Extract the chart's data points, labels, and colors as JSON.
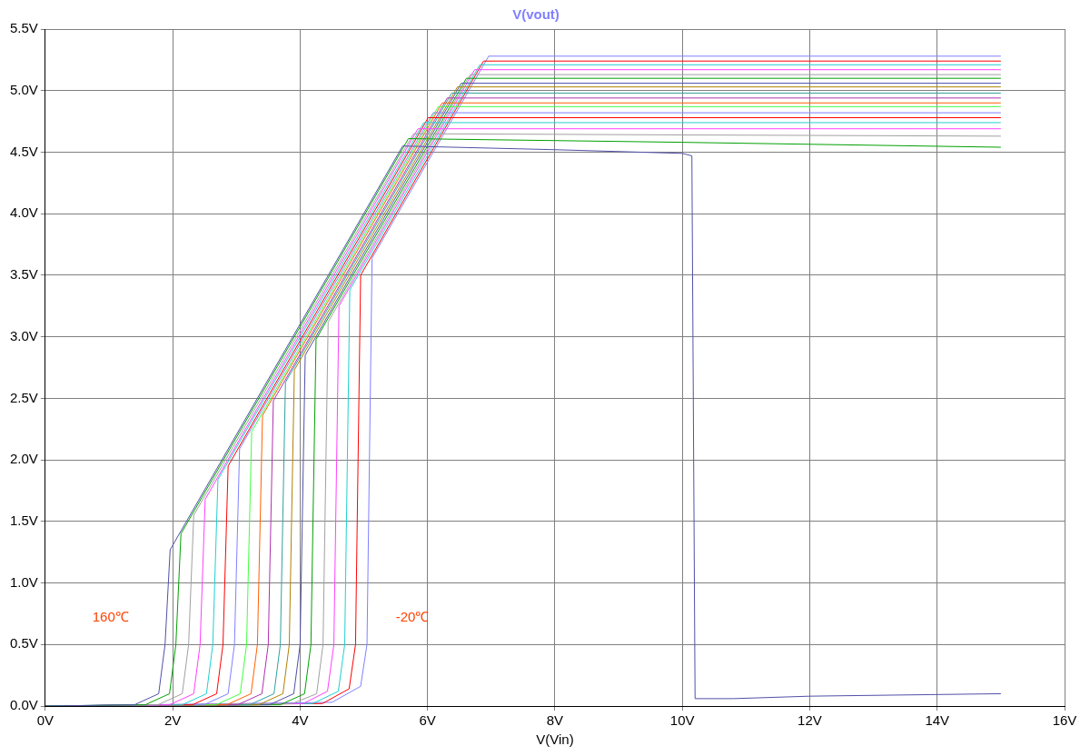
{
  "chart_data": {
    "type": "line",
    "title": "V(vout)",
    "xlabel": "V(Vin)",
    "xlim": [
      0,
      16
    ],
    "xticks": [
      {
        "value": 0,
        "label": "0V"
      },
      {
        "value": 2,
        "label": "2V"
      },
      {
        "value": 4,
        "label": "4V"
      },
      {
        "value": 6,
        "label": "6V"
      },
      {
        "value": 8,
        "label": "8V"
      },
      {
        "value": 10,
        "label": "10V"
      },
      {
        "value": 12,
        "label": "12V"
      },
      {
        "value": 14,
        "label": "14V"
      },
      {
        "value": 16,
        "label": "16V"
      }
    ],
    "ylim": [
      0,
      5.5
    ],
    "yticks": [
      {
        "value": 0,
        "label": "0.0V"
      },
      {
        "value": 0.5,
        "label": "0.5V"
      },
      {
        "value": 1,
        "label": "1.0V"
      },
      {
        "value": 1.5,
        "label": "1.5V"
      },
      {
        "value": 2,
        "label": "2.0V"
      },
      {
        "value": 2.5,
        "label": "2.5V"
      },
      {
        "value": 3,
        "label": "3.0V"
      },
      {
        "value": 3.5,
        "label": "3.5V"
      },
      {
        "value": 4,
        "label": "4.0V"
      },
      {
        "value": 4.5,
        "label": "4.5V"
      },
      {
        "value": 5,
        "label": "5.0V"
      },
      {
        "value": 5.5,
        "label": "5.5V"
      }
    ],
    "grid": true,
    "legend": false,
    "marker": "none",
    "line_style": "solid",
    "annotations": [
      "160℃",
      "-20℃"
    ],
    "series": [
      {
        "color": "#5050a8",
        "x": [
          0,
          1.4,
          1.78,
          1.88,
          1.96,
          5.61,
          8,
          10,
          10.15,
          10.2,
          10.8,
          12,
          15
        ],
        "values": [
          0,
          0.01,
          0.1,
          0.5,
          1.27,
          4.55,
          4.52,
          4.49,
          4.47,
          0.06,
          0.06,
          0.08,
          0.1
        ]
      },
      {
        "color": "#00a000",
        "x": [
          0,
          1.57,
          1.95,
          2.05,
          2.13,
          5.7,
          10,
          15
        ],
        "values": [
          0,
          0.01,
          0.1,
          0.5,
          1.4,
          4.61,
          4.58,
          4.54
        ]
      },
      {
        "color": "#a0a0a0",
        "x": [
          0,
          1.77,
          2.15,
          2.25,
          2.33,
          5.78,
          10,
          15
        ],
        "values": [
          0,
          0.01,
          0.1,
          0.5,
          1.55,
          4.65,
          4.64,
          4.63
        ]
      },
      {
        "color": "#ff40ff",
        "x": [
          0,
          1.95,
          2.33,
          2.43,
          2.51,
          5.85,
          15
        ],
        "values": [
          0,
          0.01,
          0.1,
          0.5,
          1.68,
          4.69,
          4.69
        ]
      },
      {
        "color": "#20d0d0",
        "x": [
          0,
          2.15,
          2.53,
          2.63,
          2.71,
          5.94,
          15
        ],
        "values": [
          0,
          0.01,
          0.1,
          0.5,
          1.84,
          4.74,
          4.74
        ]
      },
      {
        "color": "#ff0000",
        "x": [
          0,
          2.31,
          2.69,
          2.79,
          2.87,
          6.01,
          15
        ],
        "values": [
          0,
          0.01,
          0.1,
          0.5,
          1.95,
          4.78,
          4.78
        ]
      },
      {
        "color": "#8080ff",
        "x": [
          0,
          2.49,
          2.87,
          2.97,
          3.05,
          6.09,
          15
        ],
        "values": [
          0,
          0.01,
          0.1,
          0.5,
          2.09,
          4.82,
          4.82
        ]
      },
      {
        "color": "#40ff40",
        "x": [
          0,
          2.68,
          3.06,
          3.16,
          3.24,
          6.17,
          15
        ],
        "values": [
          0,
          0.01,
          0.1,
          0.5,
          2.23,
          4.87,
          4.87
        ]
      },
      {
        "color": "#ff6000",
        "x": [
          0,
          2.85,
          3.23,
          3.33,
          3.41,
          6.23,
          15
        ],
        "values": [
          0,
          0.01,
          0.1,
          0.5,
          2.36,
          4.9,
          4.9
        ]
      },
      {
        "color": "#b030b0",
        "x": [
          0,
          3.02,
          3.4,
          3.5,
          3.58,
          6.31,
          15
        ],
        "values": [
          0,
          0.01,
          0.1,
          0.5,
          2.48,
          4.94,
          4.94
        ]
      },
      {
        "color": "#30a0a0",
        "x": [
          0,
          3.21,
          3.59,
          3.69,
          3.77,
          6.38,
          15
        ],
        "values": [
          0,
          0.01,
          0.1,
          0.5,
          2.63,
          4.98,
          4.98
        ]
      },
      {
        "color": "#b08000",
        "x": [
          0,
          3.35,
          3.73,
          3.83,
          3.91,
          6.47,
          15
        ],
        "values": [
          0,
          0.01,
          0.1,
          0.5,
          2.73,
          5.03,
          5.03
        ]
      },
      {
        "color": "#5050a8",
        "x": [
          0,
          3.52,
          3.9,
          4.0,
          4.08,
          6.53,
          15
        ],
        "values": [
          0,
          0.01,
          0.1,
          0.5,
          2.85,
          5.06,
          5.06
        ]
      },
      {
        "color": "#00a000",
        "x": [
          0,
          3.69,
          4.07,
          4.17,
          4.25,
          6.61,
          15
        ],
        "values": [
          0,
          0.01,
          0.1,
          0.5,
          2.98,
          5.1,
          5.1
        ]
      },
      {
        "color": "#a0a0a0",
        "x": [
          0,
          3.88,
          4.26,
          4.36,
          4.44,
          6.67,
          15
        ],
        "values": [
          0,
          0.02,
          0.1,
          0.5,
          3.12,
          5.13,
          5.13
        ]
      },
      {
        "color": "#ff40ff",
        "x": [
          0,
          4.05,
          4.43,
          4.53,
          4.61,
          6.74,
          15
        ],
        "values": [
          0,
          0.02,
          0.12,
          0.5,
          3.25,
          5.17,
          5.17
        ]
      },
      {
        "color": "#20d0d0",
        "x": [
          0,
          4.2,
          4.6,
          4.7,
          4.78,
          6.82,
          15
        ],
        "values": [
          0,
          0.02,
          0.12,
          0.5,
          3.38,
          5.21,
          5.21
        ]
      },
      {
        "color": "#ff0000",
        "x": [
          0,
          4.35,
          4.77,
          4.87,
          4.95,
          6.88,
          15
        ],
        "values": [
          0,
          0.02,
          0.14,
          0.5,
          3.5,
          5.24,
          5.24
        ]
      },
      {
        "color": "#8080ff",
        "x": [
          0,
          4.5,
          4.95,
          5.05,
          5.13,
          6.96,
          15
        ],
        "values": [
          0,
          0.03,
          0.16,
          0.5,
          3.64,
          5.28,
          5.28
        ]
      }
    ]
  }
}
